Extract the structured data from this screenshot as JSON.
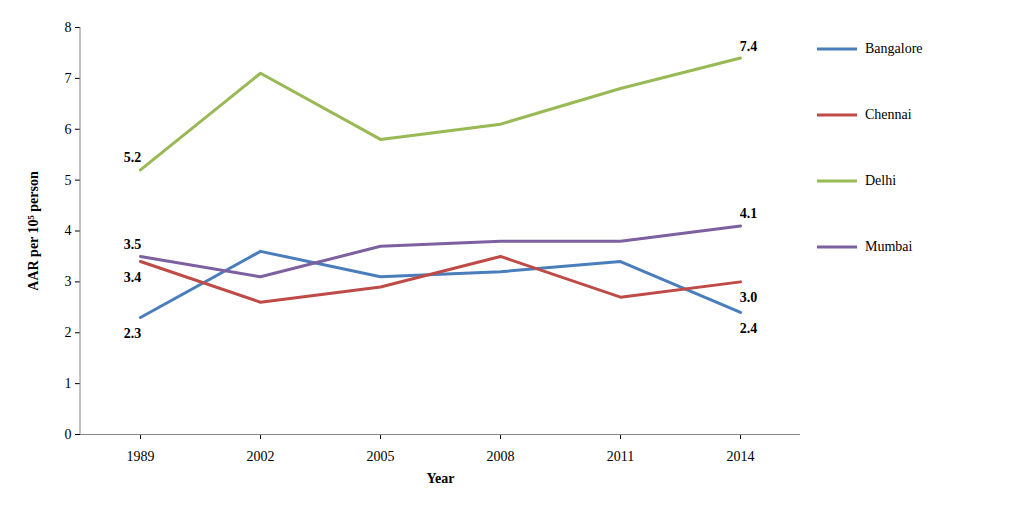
{
  "chart_data": {
    "type": "line",
    "x_label": "Year",
    "y_label": "AAR per 10⁵ person",
    "categories": [
      "1989",
      "2002",
      "2005",
      "2008",
      "2011",
      "2014"
    ],
    "series": [
      {
        "name": "Bangalore",
        "color": "#4a7ebb",
        "values": [
          2.3,
          3.6,
          3.1,
          3.2,
          3.4,
          2.4
        ]
      },
      {
        "name": "Chennai",
        "color": "#be4b48",
        "values": [
          3.4,
          2.6,
          2.9,
          3.5,
          2.7,
          3.0
        ]
      },
      {
        "name": "Delhi",
        "color": "#98b954",
        "values": [
          5.2,
          7.1,
          5.8,
          6.1,
          6.8,
          7.4
        ]
      },
      {
        "name": "Mumbai",
        "color": "#7d60a0",
        "values": [
          3.5,
          3.1,
          3.7,
          3.8,
          3.8,
          4.1
        ]
      }
    ],
    "annotations": [
      {
        "text": "5.2",
        "x": "1989",
        "y": 5.2
      },
      {
        "text": "3.5",
        "x": "1989",
        "y": 3.5
      },
      {
        "text": "3.4",
        "x": "1989",
        "y": 3.4
      },
      {
        "text": "2.3",
        "x": "1989",
        "y": 2.3
      },
      {
        "text": "7.4",
        "x": "2014",
        "y": 7.4
      },
      {
        "text": "4.1",
        "x": "2014",
        "y": 4.1
      },
      {
        "text": "3.0",
        "x": "2014",
        "y": 3.0
      },
      {
        "text": "2.4",
        "x": "2014",
        "y": 2.4
      }
    ],
    "ylim": [
      0,
      8
    ],
    "yticks": [
      0,
      1,
      2,
      3,
      4,
      5,
      6,
      7,
      8
    ],
    "grid": false,
    "legend": "right"
  }
}
